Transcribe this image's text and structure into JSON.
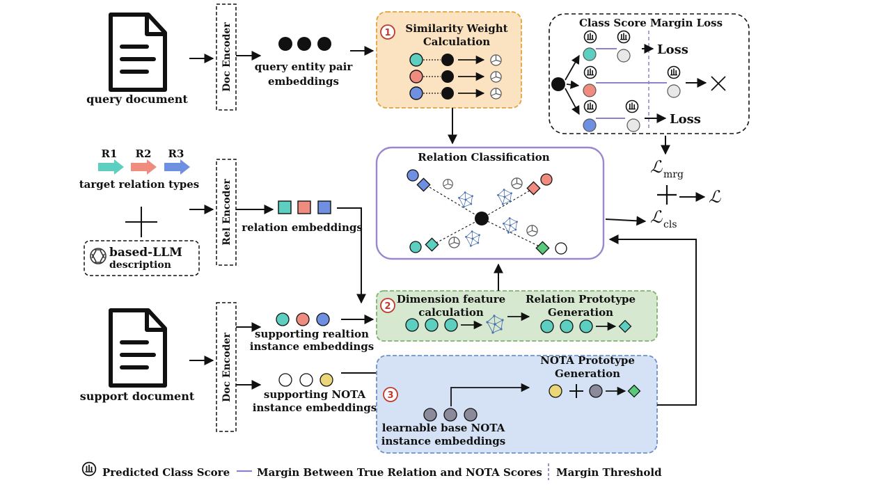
{
  "colors": {
    "teal": "#5ccfc0",
    "salmon": "#f08c7f",
    "blue": "#6f8fe0",
    "green": "#5bc97a",
    "yellow": "#ecd67a",
    "gray": "#8a8a9a",
    "light_gray": "#e8e8e8",
    "box1_fill": "#fbe3c1",
    "box1_border": "#e0a33c",
    "box2_fill": "#d6e8cf",
    "box2_border": "#7fb36d",
    "box3_fill": "#d5e1f4",
    "box3_border": "#6f90c8",
    "rc_border": "#9b88cc",
    "margin_line": "#8c82cc",
    "step_num": "#c0392b"
  },
  "labels": {
    "query_document": "query document",
    "support_document": "support document",
    "doc_encoder": "Doc Encoder",
    "rel_encoder": "Rel Encoder",
    "query_pair_line1": "query entity pair",
    "query_pair_line2": "embeddings",
    "r1": "R1",
    "r2": "R2",
    "r3": "R3",
    "target_relation_types": "target relation types",
    "llm_line1": "based-LLM",
    "llm_line2": "description",
    "relation_embeddings": "relation embeddings",
    "support_rel_line1": "supporting realtion",
    "support_rel_line2": "instance embeddings",
    "support_nota_line1": "supporting NOTA",
    "support_nota_line2": "instance embeddings",
    "learnable_line1": "learnable base NOTA",
    "learnable_line2": "instance embeddings"
  },
  "boxes": {
    "similarity": {
      "num": "1",
      "title1": "Similarity Weight",
      "title2": "Calculation"
    },
    "dimension": {
      "num": "2",
      "title1": "Dimension feature",
      "title2": "calculation"
    },
    "prototype": {
      "title1": "Relation Prototype",
      "title2": "Generation"
    },
    "nota": {
      "num": "3",
      "title1": "NOTA Prototype",
      "title2": "Generation"
    },
    "relation_classification": {
      "title": "Relation Classification"
    },
    "margin_loss": {
      "title": "Class Score Margin Loss",
      "loss1": "Loss",
      "loss2": "Loss"
    }
  },
  "math": {
    "l_mrg": "mrg",
    "l_cls": "cls",
    "l_sym": "ℒ",
    "plus": "+"
  },
  "legend": {
    "predicted": "Predicted Class Score",
    "margin": "Margin Between True Relation and NOTA Scores",
    "threshold": "Margin Threshold"
  }
}
